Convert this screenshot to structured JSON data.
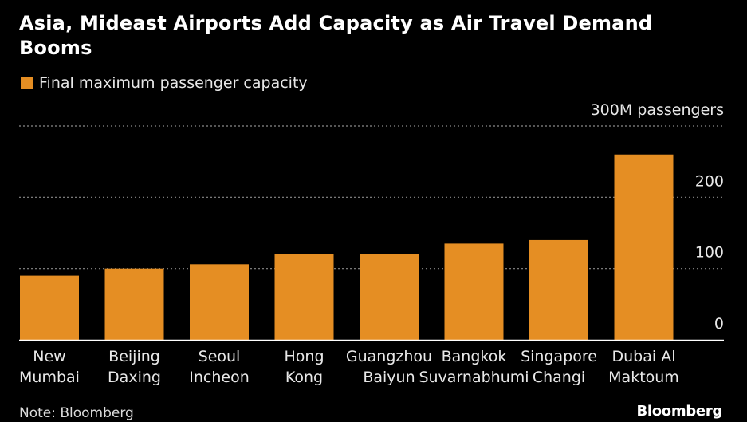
{
  "colors": {
    "bar": "#e58e23",
    "grid": "#8a8a8a",
    "background": "#000000",
    "axis": "#ffffff"
  },
  "note": "Note: Bloomberg",
  "brand": "Bloomberg",
  "chart_data": {
    "type": "bar",
    "title": "Asia, Mideast Airports Add Capacity as Air Travel Demand Booms",
    "legend": [
      "Final maximum passenger capacity"
    ],
    "legend_position": "top-left",
    "unit_label": "300M passengers",
    "categories": [
      [
        "New",
        "Mumbai"
      ],
      [
        "Beijing",
        "Daxing"
      ],
      [
        "Seoul",
        "Incheon"
      ],
      [
        "Hong",
        "Kong"
      ],
      [
        "Guangzhou",
        "Baiyun"
      ],
      [
        "Bangkok",
        "Suvarnabhumi"
      ],
      [
        "Singapore",
        "Changi"
      ],
      [
        "Dubai Al",
        "Maktoum"
      ]
    ],
    "series": [
      {
        "name": "Final maximum passenger capacity",
        "values": [
          90,
          100,
          106,
          120,
          120,
          135,
          140,
          260
        ]
      }
    ],
    "yticks": [
      "0",
      "100",
      "200"
    ],
    "ylim": [
      0,
      300
    ],
    "grid": true
  }
}
